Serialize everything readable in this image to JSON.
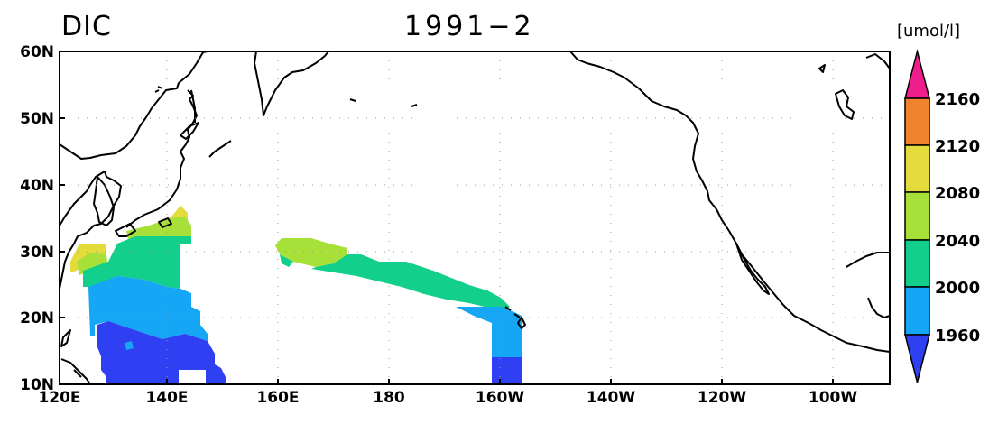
{
  "title": {
    "variable": "DIC",
    "period": "1991−2"
  },
  "colorbar": {
    "unit": "[umol/l]",
    "boundaries": [
      "1960",
      "2000",
      "2040",
      "2080",
      "2120",
      "2160"
    ],
    "colors": [
      "#2f3ff2",
      "#15a6f5",
      "#12cf8b",
      "#a8e03a",
      "#e3dc3c",
      "#f0832e",
      "#ee1f8c"
    ]
  },
  "axes": {
    "x_ticks": [
      "120E",
      "140E",
      "160E",
      "180",
      "160W",
      "140W",
      "120W",
      "100W"
    ],
    "y_ticks": [
      "60N",
      "50N",
      "40N",
      "30N",
      "20N",
      "10N"
    ],
    "lon_range": [
      "120E",
      "90W"
    ],
    "lat_range": [
      "10N",
      "60N"
    ],
    "grid": "dotted"
  },
  "map_fields": [
    {
      "region": "western-pacific-south-of-japan",
      "levels": [
        "1960",
        "1960-2000",
        "2000-2040",
        "2040-2080",
        "2080-2120"
      ]
    },
    {
      "region": "central-north-pacific-to-hawaii",
      "levels": [
        "1960",
        "1960-2000",
        "2000-2040",
        "2040-2080"
      ]
    }
  ]
}
